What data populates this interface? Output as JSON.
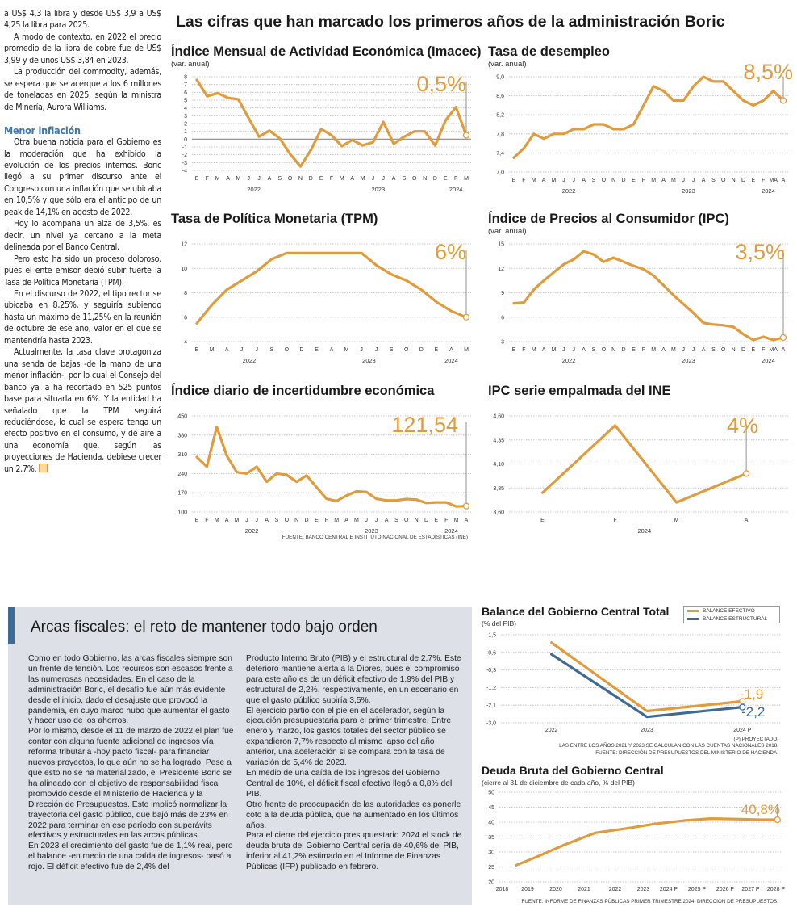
{
  "article": {
    "paragraphs_top": [
      "a US$ 4,3 la libra y desde US$ 3,9 a US$ 4,25 la libra para 2025.",
      "A modo de contexto, en 2022 el precio promedio de la libra de cobre fue de US$ 3,99 y de unos US$ 3,84 en 2023.",
      "La producción del commodity, además, se espera que se acerque a los 6 millones de toneladas en 2025, según la ministra de Minería, Aurora Williams."
    ],
    "subheading": "Menor inflación",
    "paragraphs_bottom": [
      "Otra buena noticia para el Gobierno es la moderación que ha exhibido la evolución de los precios internos. Boric llegó a su primer discurso ante el Congreso con una inflación que se ubicaba en 10,5% y que sólo era el anticipo de un peak de 14,1% en agosto de 2022.",
      "Hoy lo acompaña un alza de 3,5%, es decir, un nivel ya cercano a la meta delineada por el Banco Central.",
      "Pero esto ha sido un proceso doloroso, pues el ente emisor debió subir fuerte la Tasa de Política Monetaria (TPM).",
      "En el discurso de 2022, el tipo rector se ubicaba en 8,25%, y seguiría subiendo hasta un máximo de 11,25% en la reunión de octubre de ese año, valor en el que se mantendría hasta 2023.",
      "Actualmente, la tasa clave protagoniza una senda de bajas -de la mano de una menor inflación-, por lo cual el Consejo del banco ya la ha recortado en 525 puntos base para situarla en 6%. Y la entidad ha señalado que la TPM seguirá reduciéndose, lo cual se espera tenga un efecto positivo en el consumo, y dé aire a una economía que, según las proyecciones de Hacienda, debiese crecer un 2,7%."
    ]
  },
  "headline": "Las cifras que han marcado los primeros años de la administración Boric",
  "fiscal_box": {
    "title": "Arcas fiscales: el reto de mantener todo bajo orden",
    "col1": [
      "Como en todo Gobierno, las arcas fiscales siempre son un frente de tensión. Los recursos son escasos frente a las numerosas necesidades. En el caso de la administración Boric, el desafío fue aún más evidente desde el inicio, dado el desajuste que provocó la pandemia, en cuyo marco hubo que aumentar el gasto y hacer uso de los ahorros.",
      "Por lo mismo, desde el 11 de marzo de 2022 el plan fue contar con alguna fuente adicional de ingresos vía reforma tributaria -hoy pacto fiscal- para financiar nuevos proyectos, lo que aún no se ha logrado. Pese a que esto no se ha materializado, el Presidente Boric se ha alineado con el objetivo de responsabilidad fiscal promovido desde el Ministerio de Hacienda y la Dirección de Presupuestos. Esto implicó normalizar la trayectoria del gasto público, que bajó más de 23% en 2022 para terminar en ese período con superávits efectivos y estructurales en las arcas públicas.",
      "En 2023 el crecimiento del gasto fue de 1,1% real, pero el balance -en medio de una caída de ingresos- pasó a rojo. El déficit efectivo fue de 2,4% del"
    ],
    "col2": [
      "Producto Interno Bruto (PIB) y el estructural de 2,7%. Este deterioro mantiene alerta a la Dipres, pues el compromiso para este año es de un déficit efectivo de 1,9% del PIB y estructural de 2,2%, respectivamente, en un escenario en que el gasto público subiría 3,5%.",
      "El ejercicio partió con el pie en el acelerador, según la ejecución presupuestaria para el primer trimestre. Entre enero y marzo, los gastos totales del sector público se expandieron 7,7% respecto al mismo lapso del año anterior, una aceleración si se compara con la tasa de variación de 5,4% de 2023.",
      "En medio de una caída de los ingresos del Gobierno Central de 10%, el déficit fiscal efectivo llegó a 0,8% del PIB.",
      "Otro frente de preocupación de las autoridades es ponerle coto a la deuda pública, que ha aumentado en los últimos años.",
      "Para el cierre del ejercicio presupuestario 2024 el stock de deuda bruta del Gobierno Central sería de 40,6% del PIB, inferior al 41,2% estimado en el Informe de Finanzas Públicas (IFP) publicado en febrero."
    ]
  },
  "colors": {
    "series_primary": "#e09b3d",
    "series_secondary": "#3e6a95",
    "subheading": "#3a78b5",
    "box_bg": "#dde1e7"
  },
  "chart_data": [
    {
      "type": "line",
      "title": "Índice Mensual de Actividad Económica (Imacec)",
      "subtitle": "(var. anual)",
      "categories": [
        "E",
        "F",
        "M",
        "A",
        "M",
        "J",
        "J",
        "A",
        "S",
        "O",
        "N",
        "D",
        "E",
        "F",
        "M",
        "A",
        "M",
        "J",
        "J",
        "A",
        "S",
        "O",
        "N",
        "D",
        "E",
        "F",
        "M"
      ],
      "year_groups": [
        {
          "label": "2022",
          "months": 12
        },
        {
          "label": "2023",
          "months": 12
        },
        {
          "label": "2024",
          "months": 3
        }
      ],
      "series": [
        {
          "values": [
            7.6,
            5.5,
            5.9,
            5.3,
            5.1,
            2.7,
            0.3,
            1.1,
            0.1,
            -1.9,
            -3.5,
            -1.4,
            1.3,
            0.5,
            -0.9,
            -0.1,
            -0.8,
            -0.4,
            2.2,
            -0.6,
            0.3,
            1.0,
            1.0,
            -0.8,
            2.4,
            4.1,
            0.5
          ]
        }
      ],
      "ylim": [
        -4,
        8
      ],
      "yticks": [
        -4,
        -3,
        -2,
        -1,
        0,
        1,
        2,
        3,
        4,
        5,
        6,
        7,
        8
      ],
      "ytick_labels": [
        "-4",
        "-3",
        "-2",
        "-1",
        "0",
        "1",
        "2",
        "3",
        "4",
        "5",
        "6",
        "7",
        "8"
      ],
      "grid": true,
      "callout": "0,5%"
    },
    {
      "type": "line",
      "title": "Tasa de desempleo",
      "subtitle": "(var. anual)",
      "categories": [
        "E",
        "F",
        "M",
        "A",
        "M",
        "J",
        "J",
        "A",
        "S",
        "O",
        "N",
        "D",
        "E",
        "F",
        "M",
        "A",
        "M",
        "J",
        "J",
        "A",
        "S",
        "O",
        "N",
        "D",
        "E",
        "F",
        "MA",
        "A"
      ],
      "year_groups": [
        {
          "label": "2022",
          "months": 12
        },
        {
          "label": "2023",
          "months": 12
        },
        {
          "label": "2024",
          "months": 4
        }
      ],
      "series": [
        {
          "values": [
            7.3,
            7.5,
            7.8,
            7.7,
            7.8,
            7.8,
            7.9,
            7.9,
            8.0,
            8.0,
            7.9,
            7.9,
            8.0,
            8.4,
            8.8,
            8.7,
            8.5,
            8.5,
            8.8,
            9.0,
            8.9,
            8.9,
            8.7,
            8.5,
            8.4,
            8.5,
            8.7,
            8.5
          ]
        }
      ],
      "ylim": [
        7.0,
        9.0
      ],
      "yticks": [
        7.0,
        7.4,
        7.8,
        8.2,
        8.6,
        9.0
      ],
      "ytick_labels": [
        "7,0",
        "7,4",
        "7,8",
        "8,2",
        "8,6",
        "9,0"
      ],
      "grid": true,
      "callout": "8,5%"
    },
    {
      "type": "line",
      "title": "Tasa de Política Monetaria (TPM)",
      "subtitle": "",
      "categories": [
        "E",
        "M",
        "A",
        "J",
        "J",
        "S",
        "O",
        "D",
        "E",
        "A",
        "M",
        "J",
        "J",
        "S",
        "O",
        "D",
        "E",
        "A",
        "M"
      ],
      "year_groups": [
        {
          "label": "2022",
          "months": 8
        },
        {
          "label": "2023",
          "months": 8
        },
        {
          "label": "2024",
          "months": 3
        }
      ],
      "series": [
        {
          "values": [
            5.5,
            7.0,
            8.25,
            9.0,
            9.75,
            10.75,
            11.25,
            11.25,
            11.25,
            11.25,
            11.25,
            11.25,
            10.25,
            9.5,
            9.0,
            8.25,
            7.25,
            6.5,
            6.0
          ]
        }
      ],
      "ylim": [
        4,
        12
      ],
      "yticks": [
        4,
        6,
        8,
        10,
        12
      ],
      "ytick_labels": [
        "4",
        "6",
        "8",
        "10",
        "12"
      ],
      "grid": true,
      "callout": "6%"
    },
    {
      "type": "line",
      "title": "Índice de Precios al Consumidor (IPC)",
      "subtitle": "(var. anual)",
      "categories": [
        "E",
        "F",
        "M",
        "A",
        "M",
        "J",
        "J",
        "A",
        "S",
        "O",
        "N",
        "D",
        "E",
        "F",
        "M",
        "A",
        "M",
        "J",
        "J",
        "A",
        "S",
        "O",
        "N",
        "D",
        "E",
        "F",
        "MA",
        "A"
      ],
      "year_groups": [
        {
          "label": "2022",
          "months": 12
        },
        {
          "label": "2023",
          "months": 12
        },
        {
          "label": "2024",
          "months": 4
        }
      ],
      "series": [
        {
          "values": [
            7.7,
            7.8,
            9.4,
            10.5,
            11.5,
            12.5,
            13.1,
            14.1,
            13.7,
            12.8,
            13.3,
            12.8,
            12.3,
            11.9,
            11.1,
            9.9,
            8.7,
            7.6,
            6.5,
            5.3,
            5.1,
            5.0,
            4.8,
            3.9,
            3.2,
            3.6,
            3.2,
            3.5
          ]
        }
      ],
      "ylim": [
        3,
        15
      ],
      "yticks": [
        3,
        6,
        9,
        12,
        15
      ],
      "ytick_labels": [
        "3",
        "6",
        "9",
        "12",
        "15"
      ],
      "grid": true,
      "callout": "3,5%"
    },
    {
      "type": "line",
      "title": "Índice diario de incertidumbre económica",
      "subtitle": "",
      "categories": [
        "E",
        "F",
        "M",
        "A",
        "M",
        "J",
        "J",
        "A",
        "S",
        "O",
        "N",
        "D",
        "E",
        "F",
        "M",
        "A",
        "M",
        "J",
        "J",
        "A",
        "S",
        "O",
        "N",
        "D",
        "E",
        "F",
        "M",
        "A"
      ],
      "year_groups": [
        {
          "label": "2022",
          "months": 12
        },
        {
          "label": "2023",
          "months": 12
        },
        {
          "label": "2024",
          "months": 4
        }
      ],
      "series": [
        {
          "values": [
            300,
            265,
            410,
            305,
            245,
            240,
            265,
            210,
            240,
            235,
            210,
            233,
            190,
            148,
            140,
            160,
            175,
            173,
            148,
            142,
            142,
            147,
            145,
            133,
            135,
            135,
            120,
            121.54
          ]
        }
      ],
      "ylim": [
        100,
        450
      ],
      "yticks": [
        100,
        170,
        240,
        310,
        380,
        450
      ],
      "ytick_labels": [
        "100",
        "170",
        "240",
        "310",
        "380",
        "450"
      ],
      "grid": true,
      "callout": "121,54",
      "source": "Fuente: Banco Central e Instituto Nacional de Estadísticas (INE)"
    },
    {
      "type": "line",
      "title": "IPC serie empalmada del INE",
      "subtitle": "",
      "categories": [
        "E",
        "F",
        "M",
        "A"
      ],
      "year_groups": [
        {
          "label": "2024",
          "months": 4
        }
      ],
      "series": [
        {
          "values": [
            3.8,
            4.5,
            3.7,
            4.0
          ]
        }
      ],
      "ylim": [
        3.6,
        4.6
      ],
      "yticks": [
        3.6,
        3.85,
        4.1,
        4.35,
        4.6
      ],
      "ytick_labels": [
        "3,60",
        "3,85",
        "4,10",
        "4,35",
        "4,60"
      ],
      "grid": true,
      "callout": "4%"
    },
    {
      "type": "line",
      "title": "Balance del Gobierno Central Total",
      "subtitle": "(% del PIB)",
      "categories": [
        "2022",
        "2023",
        "2024 P"
      ],
      "series": [
        {
          "name": "BALANCE EFECTIVO",
          "values": [
            1.1,
            -2.4,
            -1.9
          ],
          "end_label": "-1,9"
        },
        {
          "name": "BALANCE ESTRUCTURAL",
          "values": [
            0.5,
            -2.7,
            -2.2
          ],
          "end_label": "-2,2"
        }
      ],
      "ylim": [
        -3.0,
        1.5
      ],
      "yticks": [
        -3.0,
        -2.1,
        -1.2,
        -0.3,
        0.6,
        1.5
      ],
      "ytick_labels": [
        "-3,0",
        "-2,1",
        "-1,2",
        "-0,3",
        "0,6",
        "1,5"
      ],
      "grid": true,
      "legend": "top-right",
      "notes": [
        "(P) Proyectado.",
        "Las entre los años 2021 y 2023 se calculan  con las cuentas nacionales 2018.",
        "Fuente: Dirección de Presupuestos del Ministerio de Hacienda."
      ]
    },
    {
      "type": "line",
      "title": "Deuda Bruta del Gobierno Central",
      "subtitle": "(cierre al 31 de diciembre de cada año, % del PIB)",
      "categories": [
        "2018",
        "2019",
        "2020",
        "2021",
        "2022",
        "2023",
        "2024 P",
        "2025 P",
        "2026 P",
        "2027 P",
        "2028 P"
      ],
      "series": [
        {
          "values": [
            25.6,
            28.3,
            32.4,
            36.4,
            37.9,
            39.4,
            40.6,
            41.2,
            41.0,
            40.8,
            40.8
          ]
        }
      ],
      "ylim": [
        20,
        50
      ],
      "yticks": [
        20,
        25,
        30,
        35,
        40,
        45,
        50
      ],
      "ytick_labels": [
        "20",
        "25",
        "30",
        "35",
        "40",
        "45",
        "50"
      ],
      "grid": true,
      "callout": "40,8%",
      "source": "Fuente: Informe de Finanzas Públicas primer trimestre 2024, Dirección de Presupuestos."
    }
  ]
}
